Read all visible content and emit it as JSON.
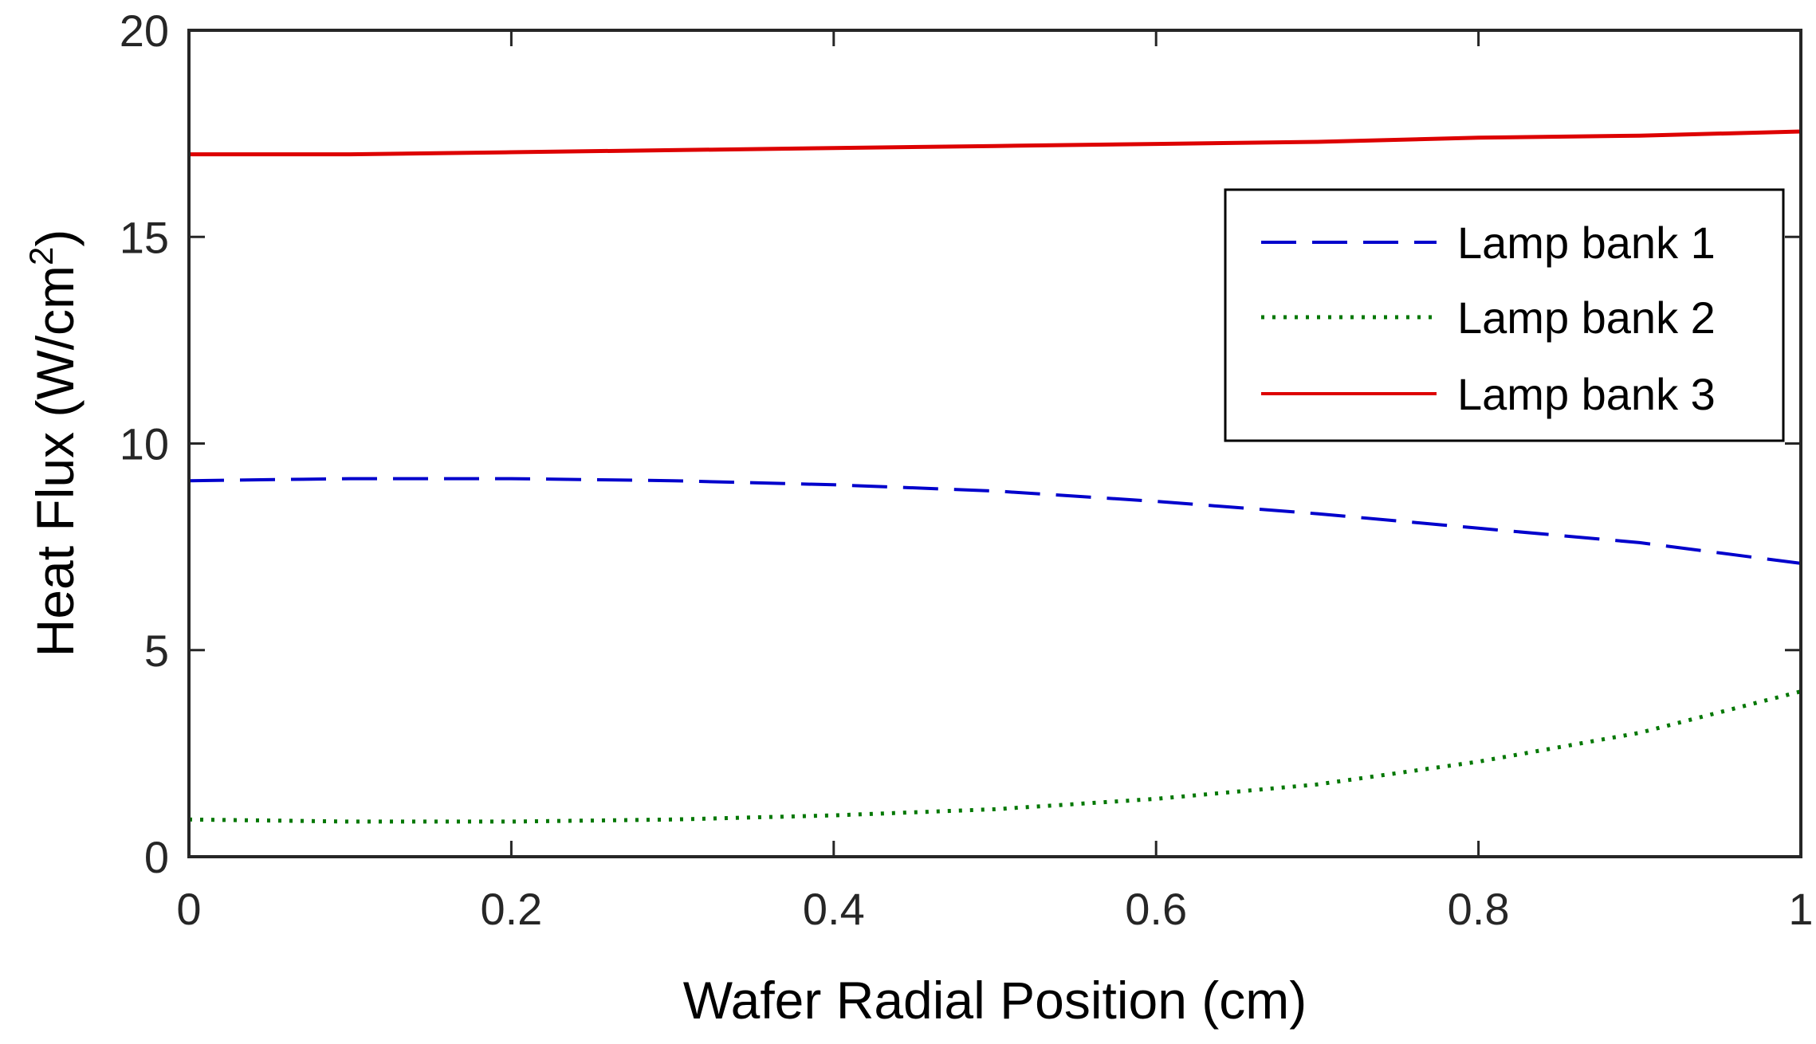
{
  "chart_data": {
    "type": "line",
    "title": "",
    "xlabel": "Wafer Radial Position (cm)",
    "ylabel": "Heat Flux (W/cm",
    "ylabel_superscript": "2",
    "ylabel_close": ")",
    "xlim": [
      0,
      1
    ],
    "ylim": [
      0,
      20
    ],
    "xticks": [
      0,
      0.2,
      0.4,
      0.6,
      0.8,
      1
    ],
    "xtick_labels": [
      "0",
      "0.2",
      "0.4",
      "0.6",
      "0.8",
      "1"
    ],
    "yticks": [
      0,
      5,
      10,
      15,
      20
    ],
    "ytick_labels": [
      "0",
      "5",
      "10",
      "15",
      "20"
    ],
    "grid": false,
    "legend_position": "upper-right",
    "x": [
      0,
      0.1,
      0.2,
      0.3,
      0.4,
      0.5,
      0.6,
      0.7,
      0.8,
      0.9,
      1.0
    ],
    "series": [
      {
        "name": "Lamp bank 1",
        "color": "#0000cc",
        "style": "dashed",
        "values": [
          9.1,
          9.15,
          9.15,
          9.1,
          9.0,
          8.85,
          8.6,
          8.3,
          7.95,
          7.6,
          7.1
        ]
      },
      {
        "name": "Lamp bank 2",
        "color": "#007700",
        "style": "dotted",
        "values": [
          0.9,
          0.85,
          0.85,
          0.9,
          1.0,
          1.15,
          1.4,
          1.75,
          2.3,
          3.0,
          4.0
        ]
      },
      {
        "name": "Lamp bank 3",
        "color": "#dd0000",
        "style": "solid",
        "values": [
          17.0,
          17.0,
          17.05,
          17.1,
          17.15,
          17.2,
          17.25,
          17.3,
          17.4,
          17.45,
          17.55
        ]
      }
    ]
  }
}
